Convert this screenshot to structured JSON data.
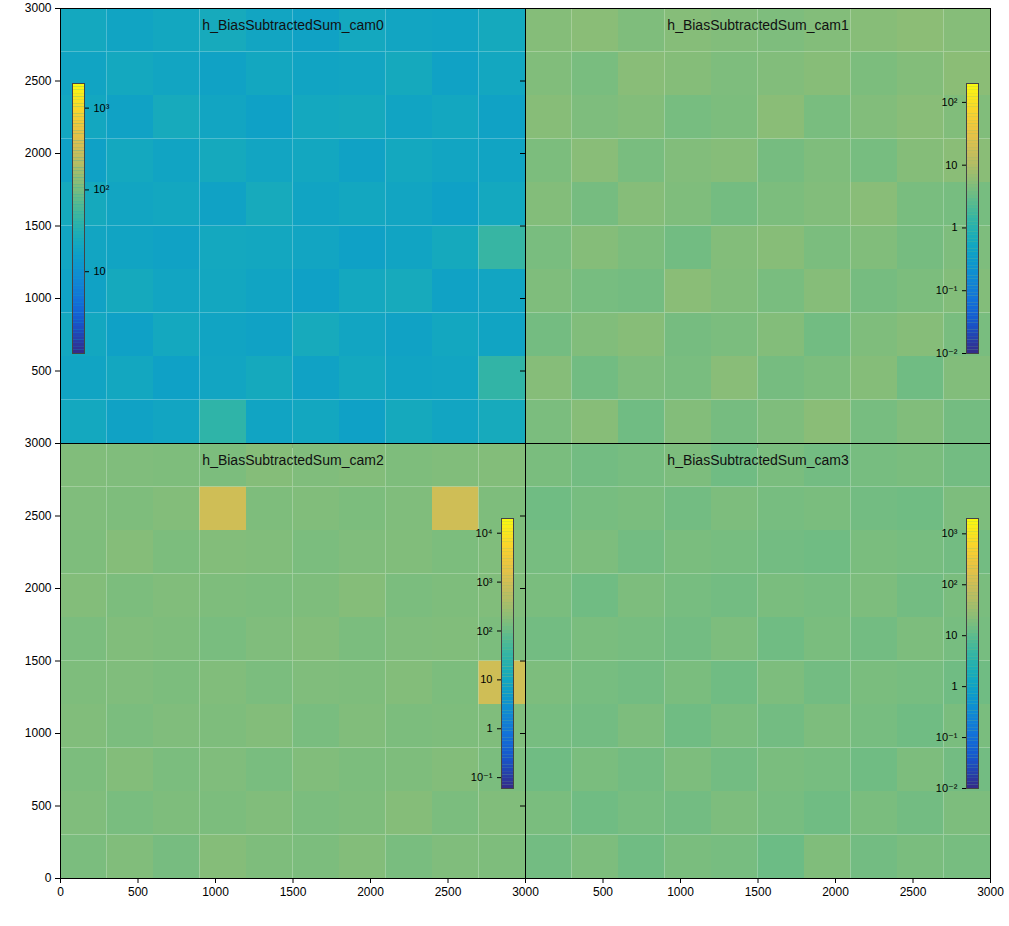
{
  "chart_data": [
    {
      "type": "heatmap",
      "title": "h_BiasSubtractedSum_cam0",
      "xlim": [
        0,
        3000
      ],
      "ylim": [
        0,
        3000
      ],
      "xticks": [
        0,
        500,
        1000,
        1500,
        2000,
        2500,
        3000
      ],
      "yticks": [
        500,
        1000,
        1500,
        2000,
        2500,
        3000
      ],
      "tick_labels": "y",
      "x_bins": [
        0,
        300,
        600,
        900,
        1200,
        1500,
        1800,
        2100,
        2400,
        2700,
        3000
      ],
      "y_bins": [
        0,
        300,
        600,
        900,
        1200,
        1500,
        1800,
        2100,
        2400,
        2700,
        3000
      ],
      "values": [
        [
          22,
          18,
          20,
          40,
          19,
          21,
          17,
          23,
          20,
          24
        ],
        [
          19,
          21,
          17,
          20,
          23,
          18,
          22,
          19,
          20,
          42
        ],
        [
          21,
          17,
          22,
          19,
          18,
          24,
          20,
          18,
          21,
          19
        ],
        [
          18,
          23,
          20,
          21,
          19,
          17,
          22,
          24,
          18,
          20
        ],
        [
          20,
          19,
          18,
          22,
          21,
          20,
          17,
          19,
          23,
          45
        ],
        [
          23,
          20,
          21,
          18,
          24,
          19,
          21,
          20,
          17,
          22
        ],
        [
          17,
          22,
          19,
          23,
          20,
          21,
          18,
          22,
          20,
          19
        ],
        [
          21,
          18,
          24,
          20,
          17,
          22,
          23,
          19,
          21,
          18
        ],
        [
          19,
          22,
          20,
          18,
          21,
          19,
          20,
          23,
          18,
          21
        ],
        [
          22,
          19,
          21,
          24,
          20,
          18,
          22,
          20,
          19,
          23
        ]
      ],
      "colorbar": {
        "range": [
          1,
          2000
        ],
        "ticks": [
          10,
          {
            "value": 100,
            "label": "10²"
          },
          {
            "value": 1000,
            "label": "10³"
          }
        ]
      }
    },
    {
      "type": "heatmap",
      "title": "h_BiasSubtractedSum_cam1",
      "xlim": [
        0,
        3000
      ],
      "ylim": [
        0,
        3000
      ],
      "xticks": [
        0,
        500,
        1000,
        1500,
        2000,
        2500,
        3000
      ],
      "yticks": [
        0,
        500,
        1000,
        1500,
        2000,
        2500,
        3000
      ],
      "tick_labels": false,
      "x_bins": [
        0,
        300,
        600,
        900,
        1200,
        1500,
        1800,
        2100,
        2400,
        2700,
        3000
      ],
      "y_bins": [
        0,
        300,
        600,
        900,
        1200,
        1500,
        1800,
        2100,
        2400,
        2700,
        3000
      ],
      "values": [
        [
          4.2,
          5.1,
          3.6,
          4.8,
          3.9,
          4.5,
          5.3,
          4.0,
          4.6,
          3.8
        ],
        [
          5.0,
          3.7,
          4.4,
          4.1,
          5.2,
          3.9,
          4.3,
          4.9,
          3.6,
          4.7
        ],
        [
          3.8,
          4.6,
          5.1,
          3.9,
          4.2,
          4.8,
          3.7,
          4.5,
          5.0,
          4.1
        ],
        [
          4.5,
          4.0,
          3.8,
          5.3,
          4.6,
          4.1,
          5.0,
          3.9,
          4.3,
          4.8
        ],
        [
          4.1,
          4.9,
          4.3,
          3.7,
          4.8,
          5.1,
          4.2,
          4.6,
          3.9,
          4.4
        ],
        [
          4.8,
          3.9,
          5.0,
          4.5,
          3.8,
          4.3,
          4.7,
          5.2,
          4.1,
          4.0
        ],
        [
          4.3,
          5.2,
          4.1,
          4.7,
          5.0,
          3.9,
          4.5,
          4.0,
          4.9,
          5.3
        ],
        [
          5.1,
          4.4,
          4.8,
          4.0,
          4.3,
          5.3,
          4.1,
          4.7,
          5.2,
          4.6
        ],
        [
          4.6,
          4.1,
          5.2,
          4.9,
          4.4,
          4.7,
          5.1,
          4.3,
          4.8,
          5.4
        ],
        [
          4.9,
          5.3,
          4.5,
          5.0,
          4.7,
          4.4,
          4.8,
          5.1,
          5.5,
          5.0
        ]
      ],
      "colorbar": {
        "range": [
          0.01,
          200
        ],
        "ticks": [
          {
            "value": 0.01,
            "label": "10⁻²"
          },
          {
            "value": 0.1,
            "label": "10⁻¹"
          },
          1,
          10,
          {
            "value": 100,
            "label": "10²"
          }
        ]
      }
    },
    {
      "type": "heatmap",
      "title": "h_BiasSubtractedSum_cam2",
      "xlim": [
        0,
        3000
      ],
      "ylim": [
        0,
        3000
      ],
      "xticks": [
        0,
        500,
        1000,
        1500,
        2000,
        2500,
        3000
      ],
      "yticks": [
        0,
        500,
        1000,
        1500,
        2000,
        2500,
        3000
      ],
      "x_bins": [
        0,
        300,
        600,
        900,
        1200,
        1500,
        1800,
        2100,
        2400,
        2700,
        3000
      ],
      "y_bins": [
        0,
        300,
        600,
        900,
        1200,
        1500,
        1800,
        2100,
        2400,
        2700,
        3000
      ],
      "values": [
        [
          140,
          160,
          130,
          170,
          150,
          145,
          165,
          135,
          155,
          150
        ],
        [
          155,
          135,
          150,
          145,
          160,
          140,
          150,
          170,
          140,
          160
        ],
        [
          145,
          165,
          140,
          155,
          135,
          160,
          145,
          150,
          165,
          140
        ],
        [
          160,
          140,
          155,
          150,
          165,
          135,
          160,
          145,
          150,
          155
        ],
        [
          150,
          155,
          145,
          160,
          140,
          155,
          150,
          165,
          145,
          900
        ],
        [
          140,
          160,
          150,
          135,
          155,
          165,
          140,
          155,
          160,
          145
        ],
        [
          165,
          145,
          160,
          150,
          145,
          150,
          170,
          140,
          150,
          160
        ],
        [
          150,
          170,
          145,
          165,
          160,
          140,
          155,
          160,
          145,
          155
        ],
        [
          155,
          150,
          165,
          900,
          150,
          160,
          145,
          155,
          900,
          150
        ],
        [
          160,
          155,
          150,
          145,
          170,
          155,
          165,
          150,
          160,
          165
        ]
      ],
      "colorbar": {
        "range": [
          0.06,
          20000
        ],
        "ticks": [
          {
            "value": 0.1,
            "label": "10⁻¹"
          },
          1,
          10,
          {
            "value": 100,
            "label": "10²"
          },
          {
            "value": 1000,
            "label": "10³"
          },
          {
            "value": 10000,
            "label": "10⁴"
          }
        ]
      }
    },
    {
      "type": "heatmap",
      "title": "h_BiasSubtractedSum_cam3",
      "xlim": [
        0,
        3000
      ],
      "ylim": [
        0,
        3000
      ],
      "xticks": [
        500,
        1000,
        1500,
        2000,
        2500,
        3000
      ],
      "yticks": [
        0,
        500,
        1000,
        1500,
        2000,
        2500,
        3000
      ],
      "tick_labels": "x",
      "x_bins": [
        0,
        300,
        600,
        900,
        1200,
        1500,
        1800,
        2100,
        2400,
        2700,
        3000
      ],
      "y_bins": [
        0,
        300,
        600,
        900,
        1200,
        1500,
        1800,
        2100,
        2400,
        2700,
        3000
      ],
      "values": [
        [
          15,
          18,
          14,
          17,
          16,
          13,
          19,
          15,
          17,
          16
        ],
        [
          17,
          14,
          16,
          15,
          18,
          16,
          14,
          17,
          15,
          18
        ],
        [
          14,
          17,
          15,
          18,
          15,
          17,
          16,
          14,
          18,
          15
        ],
        [
          16,
          15,
          18,
          14,
          17,
          15,
          18,
          16,
          14,
          17
        ],
        [
          18,
          16,
          15,
          17,
          14,
          18,
          15,
          17,
          16,
          14
        ],
        [
          15,
          17,
          16,
          15,
          18,
          14,
          17,
          15,
          18,
          16
        ],
        [
          17,
          14,
          18,
          16,
          15,
          17,
          16,
          18,
          15,
          17
        ],
        [
          16,
          18,
          15,
          17,
          16,
          15,
          14,
          17,
          16,
          15
        ],
        [
          14,
          16,
          17,
          15,
          18,
          16,
          17,
          15,
          14,
          18
        ],
        [
          17,
          15,
          16,
          18,
          14,
          17,
          15,
          16,
          17,
          15
        ]
      ],
      "colorbar": {
        "range": [
          0.01,
          2000
        ],
        "ticks": [
          {
            "value": 0.01,
            "label": "10⁻²"
          },
          {
            "value": 0.1,
            "label": "10⁻¹"
          },
          1,
          10,
          {
            "value": 100,
            "label": "10²"
          },
          {
            "value": 1000,
            "label": "10³"
          }
        ]
      }
    }
  ]
}
